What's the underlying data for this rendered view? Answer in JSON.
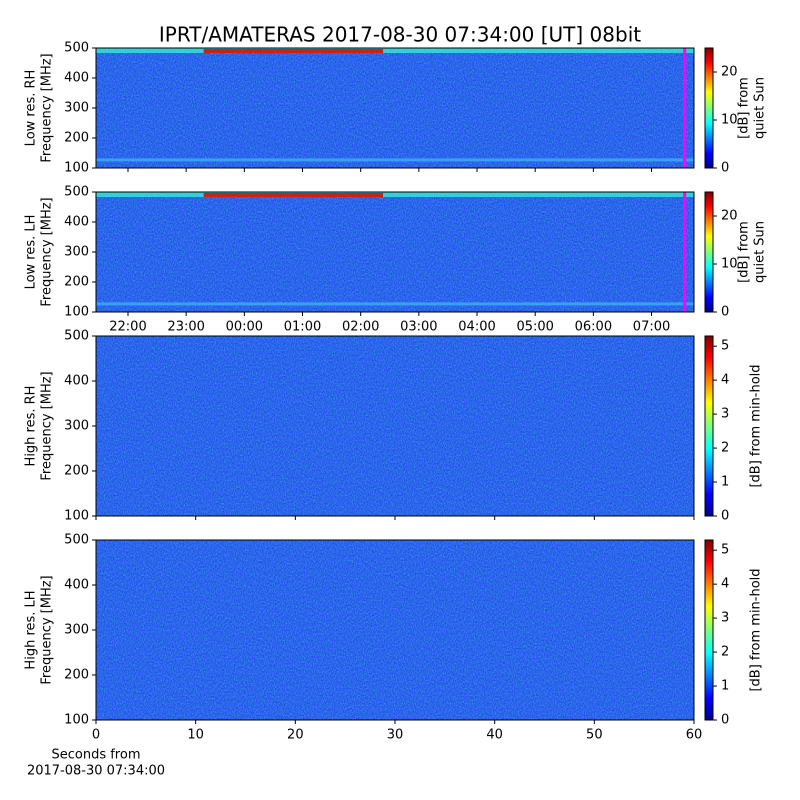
{
  "title": "IPRT/AMATERAS 2017-08-30 07:34:00 [UT]   08bit",
  "chart_data": [
    {
      "type": "spectrogram",
      "ylabel": [
        "Low res. RH",
        "Frequency [MHz]"
      ],
      "xlim": [
        21.45,
        31.73
      ],
      "xticks": [
        22,
        23,
        24,
        25,
        26,
        27,
        28,
        29,
        30,
        31
      ],
      "show_xticklabels": false,
      "ylim": [
        100,
        500
      ],
      "yticks": [
        100,
        200,
        300,
        400,
        500
      ],
      "marker_x": 31.57,
      "marker_color": "#ff00ff",
      "clim": [
        0,
        25
      ],
      "cticks": [
        0,
        10,
        20
      ],
      "clabel": [
        "[dB] from",
        "quiet Sun"
      ]
    },
    {
      "type": "spectrogram",
      "ylabel": [
        "Low res. LH",
        "Frequency [MHz]"
      ],
      "xlim": [
        21.45,
        31.73
      ],
      "xticks": [
        {
          "value": 22,
          "label": "22:00"
        },
        {
          "value": 23,
          "label": "23:00"
        },
        {
          "value": 24,
          "label": "00:00"
        },
        {
          "value": 25,
          "label": "01:00"
        },
        {
          "value": 26,
          "label": "02:00"
        },
        {
          "value": 27,
          "label": "03:00"
        },
        {
          "value": 28,
          "label": "04:00"
        },
        {
          "value": 29,
          "label": "05:00"
        },
        {
          "value": 30,
          "label": "06:00"
        },
        {
          "value": 31,
          "label": "07:00"
        }
      ],
      "show_xticklabels": true,
      "ylim": [
        100,
        500
      ],
      "yticks": [
        100,
        200,
        300,
        400,
        500
      ],
      "marker_x": 31.57,
      "marker_color": "#ff00ff",
      "clim": [
        0,
        25
      ],
      "cticks": [
        0,
        10,
        20
      ],
      "clabel": [
        "[dB] from",
        "quiet Sun"
      ]
    },
    {
      "type": "spectrogram",
      "ylabel": [
        "High res. RH",
        "Frequency [MHz]"
      ],
      "xlim": [
        0,
        60
      ],
      "xticks": [
        0,
        10,
        20,
        30,
        40,
        50,
        60
      ],
      "show_xticklabels": false,
      "ylim": [
        100,
        500
      ],
      "yticks": [
        100,
        200,
        300,
        400,
        500
      ],
      "clim": [
        0,
        5.3
      ],
      "cticks": [
        0,
        1,
        2,
        3,
        4,
        5
      ],
      "clabel": [
        "[dB] from min-hold"
      ]
    },
    {
      "type": "spectrogram",
      "ylabel": [
        "High res. LH",
        "Frequency [MHz]"
      ],
      "xlim": [
        0,
        60
      ],
      "xticks": [
        0,
        10,
        20,
        30,
        40,
        50,
        60
      ],
      "show_xticklabels": true,
      "xlabel": [
        "Seconds from",
        "2017-08-30 07:34:00"
      ],
      "ylim": [
        100,
        500
      ],
      "yticks": [
        100,
        200,
        300,
        400,
        500
      ],
      "clim": [
        0,
        5.3
      ],
      "cticks": [
        0,
        1,
        2,
        3,
        4,
        5
      ],
      "clabel": [
        "[dB] from min-hold"
      ]
    }
  ]
}
